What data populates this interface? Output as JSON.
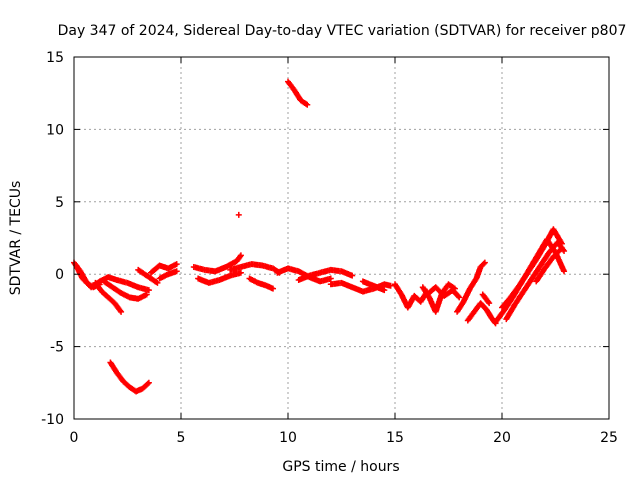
{
  "chart_data": {
    "type": "scatter",
    "title": "Day 347 of 2024, Sidereal Day-to-day VTEC variation (SDTVAR) for receiver p807",
    "xlabel": "GPS time / hours",
    "ylabel": "SDTVAR / TECUs",
    "xlim": [
      0,
      25
    ],
    "ylim": [
      -10,
      15
    ],
    "xticks": [
      0,
      5,
      10,
      15,
      20,
      25
    ],
    "yticks": [
      -10,
      -5,
      0,
      5,
      10,
      15
    ],
    "grid": true,
    "marker": "plus",
    "color": "#ff0000",
    "series": [
      {
        "name": "SDTVAR",
        "tracks": [
          {
            "x": [
              0.0,
              0.3,
              0.6,
              0.9,
              1.2
            ],
            "y": [
              0.8,
              0.2,
              -0.6,
              -0.9,
              -0.7
            ]
          },
          {
            "x": [
              0.1,
              0.4,
              0.8,
              1.2,
              1.6,
              2.0,
              2.5,
              3.0,
              3.5
            ],
            "y": [
              0.6,
              -0.3,
              -0.9,
              -0.5,
              -0.2,
              -0.4,
              -0.6,
              -0.9,
              -1.1
            ]
          },
          {
            "x": [
              1.0,
              1.3,
              1.6,
              1.9,
              2.2
            ],
            "y": [
              -0.6,
              -1.2,
              -1.6,
              -2.0,
              -2.6
            ]
          },
          {
            "x": [
              1.4,
              1.8,
              2.2,
              2.6,
              3.0,
              3.4
            ],
            "y": [
              -0.5,
              -0.9,
              -1.3,
              -1.6,
              -1.7,
              -1.4
            ]
          },
          {
            "x": [
              3.0,
              3.3,
              3.6,
              3.9
            ],
            "y": [
              0.3,
              0.0,
              -0.3,
              -0.6
            ]
          },
          {
            "x": [
              3.6,
              4.0,
              4.4,
              4.8
            ],
            "y": [
              0.1,
              0.6,
              0.4,
              0.7
            ]
          },
          {
            "x": [
              4.0,
              4.4,
              4.8
            ],
            "y": [
              -0.3,
              0.0,
              0.2
            ]
          },
          {
            "x": [
              1.7,
              2.0,
              2.3,
              2.6,
              2.9,
              3.2,
              3.5
            ],
            "y": [
              -6.1,
              -6.8,
              -7.4,
              -7.8,
              -8.1,
              -7.9,
              -7.5
            ]
          },
          {
            "x": [
              5.6,
              6.1,
              6.6,
              7.1,
              7.6,
              7.8
            ],
            "y": [
              0.5,
              0.3,
              0.2,
              0.5,
              0.9,
              1.3
            ]
          },
          {
            "x": [
              5.8,
              6.3,
              6.8,
              7.3,
              7.8
            ],
            "y": [
              -0.3,
              -0.6,
              -0.4,
              -0.1,
              0.1
            ]
          },
          {
            "x": [
              7.3,
              7.8,
              8.3,
              8.8,
              9.3,
              9.6
            ],
            "y": [
              0.3,
              0.5,
              0.7,
              0.6,
              0.4,
              0.1
            ]
          },
          {
            "x": [
              8.2,
              8.6,
              9.0,
              9.3
            ],
            "y": [
              -0.3,
              -0.6,
              -0.8,
              -1.0
            ]
          },
          {
            "x": [
              7.7
            ],
            "y": [
              4.1
            ]
          },
          {
            "x": [
              10.0,
              10.3,
              10.6,
              10.9
            ],
            "y": [
              13.3,
              12.7,
              12.0,
              11.7
            ]
          },
          {
            "x": [
              9.5,
              10.0,
              10.5,
              11.0,
              11.5,
              12.0
            ],
            "y": [
              0.1,
              0.4,
              0.2,
              -0.2,
              -0.5,
              -0.3
            ]
          },
          {
            "x": [
              10.5,
              11.0,
              11.5,
              12.0,
              12.5,
              13.0
            ],
            "y": [
              -0.4,
              -0.1,
              0.1,
              0.3,
              0.2,
              -0.1
            ]
          },
          {
            "x": [
              12.0,
              12.5,
              13.0,
              13.5,
              14.0,
              14.5,
              14.8
            ],
            "y": [
              -0.7,
              -0.6,
              -0.9,
              -1.2,
              -1.0,
              -0.7,
              -0.8
            ]
          },
          {
            "x": [
              13.5,
              14.0,
              14.5
            ],
            "y": [
              -0.5,
              -0.8,
              -1.1
            ]
          },
          {
            "x": [
              15.0,
              15.3,
              15.6,
              15.9,
              16.2,
              16.5
            ],
            "y": [
              -0.7,
              -1.4,
              -2.3,
              -1.5,
              -1.9,
              -1.2
            ]
          },
          {
            "x": [
              16.3,
              16.6,
              16.9,
              17.2,
              17.5,
              17.8
            ],
            "y": [
              -0.9,
              -1.6,
              -2.6,
              -1.3,
              -0.7,
              -1.0
            ]
          },
          {
            "x": [
              16.5,
              16.9,
              17.3,
              17.7,
              18.0
            ],
            "y": [
              -1.4,
              -0.9,
              -1.5,
              -1.1,
              -1.6
            ]
          },
          {
            "x": [
              17.9,
              18.2,
              18.5,
              18.8,
              19.0,
              19.2
            ],
            "y": [
              -2.6,
              -1.9,
              -1.0,
              -0.3,
              0.5,
              0.8
            ]
          },
          {
            "x": [
              18.4,
              18.7,
              19.0,
              19.3,
              19.5,
              19.7
            ],
            "y": [
              -3.2,
              -2.6,
              -2.0,
              -2.5,
              -3.0,
              -3.4
            ]
          },
          {
            "x": [
              19.1,
              19.4
            ],
            "y": [
              -1.4,
              -2.0
            ]
          },
          {
            "x": [
              19.7,
              20.1,
              20.5,
              20.9,
              21.3,
              21.7,
              22.1,
              22.5,
              22.9
            ],
            "y": [
              -3.3,
              -2.5,
              -1.6,
              -0.6,
              0.4,
              1.4,
              2.4,
              1.5,
              0.2
            ]
          },
          {
            "x": [
              20.0,
              20.4,
              20.8,
              21.2,
              21.6,
              22.0,
              22.4,
              22.8
            ],
            "y": [
              -2.3,
              -1.6,
              -0.8,
              0.1,
              1.0,
              2.0,
              3.1,
              2.1
            ]
          },
          {
            "x": [
              20.2,
              20.6,
              21.0,
              21.4,
              21.8,
              22.2,
              22.6,
              22.9
            ],
            "y": [
              -3.1,
              -2.1,
              -1.2,
              -0.3,
              0.6,
              1.5,
              2.2,
              1.6
            ]
          },
          {
            "x": [
              21.6,
              22.0,
              22.4,
              22.8
            ],
            "y": [
              -0.5,
              0.4,
              1.2,
              1.8
            ]
          }
        ]
      }
    ]
  }
}
